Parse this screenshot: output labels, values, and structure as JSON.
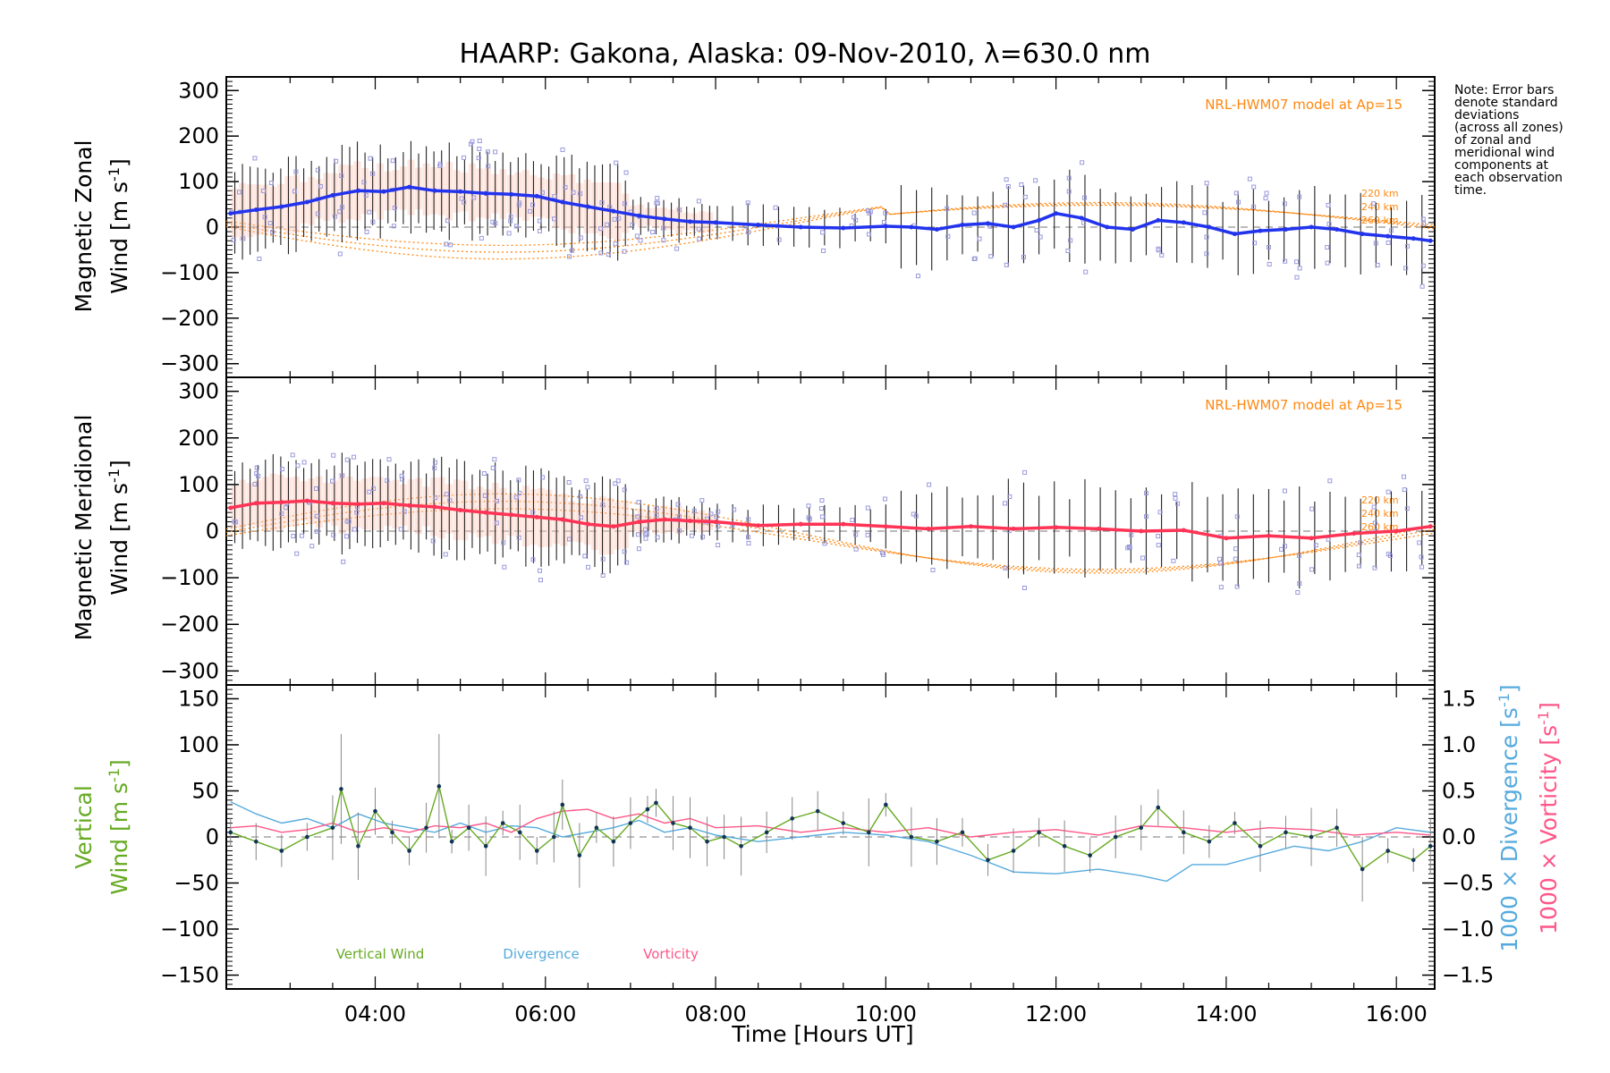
{
  "title": "HAARP: Gakona,  Alaska: 09-Nov-2010, λ=630.0 nm",
  "note": [
    "Note: Error bars",
    "denote standard",
    "deviations",
    "(across all zones)",
    "of zonal and",
    "meridional wind",
    "components at",
    "each observation",
    "time."
  ],
  "colors": {
    "zonal": "#2233ee",
    "meridional": "#ff3355",
    "vertical": "#66aa22",
    "divergence": "#55aadd",
    "vorticity": "#ff5588",
    "model": "#ff8811",
    "scatter": "#9999dd",
    "errbar": "#222222"
  },
  "chart_data": [
    {
      "type": "line",
      "panel": "zonal",
      "ylabel": [
        "Magnetic Zonal",
        "Wind [m s⁻¹]"
      ],
      "ylabel_line1": "Magnetic Zonal",
      "ylabel_line2": "Wind [m s",
      "ylabel_sup": "-1",
      "ylim": [
        -330,
        330
      ],
      "yticks": [
        "300",
        "200",
        "100",
        "0",
        "−100",
        "−200",
        "−300"
      ],
      "ytick_values": [
        300,
        200,
        100,
        0,
        -100,
        -200,
        -300
      ],
      "model_label": "NRL-HWM07 model at Ap=15",
      "model_altitudes": [
        "220 km",
        "240 km",
        "260 km"
      ],
      "series_x_hours": [
        2.3,
        2.6,
        2.9,
        3.2,
        3.5,
        3.8,
        4.1,
        4.4,
        4.7,
        5.0,
        5.3,
        5.6,
        5.9,
        6.2,
        6.5,
        6.8,
        7.1,
        7.4,
        7.7,
        8.0,
        8.5,
        9.0,
        9.5,
        10.0,
        10.3,
        10.6,
        10.9,
        11.2,
        11.5,
        11.8,
        12.0,
        12.3,
        12.6,
        12.9,
        13.2,
        13.5,
        13.8,
        14.1,
        14.4,
        14.7,
        15.0,
        15.3,
        15.6,
        15.9,
        16.2,
        16.4
      ],
      "series_values": [
        30,
        38,
        45,
        55,
        70,
        80,
        78,
        88,
        80,
        78,
        74,
        72,
        68,
        55,
        45,
        35,
        25,
        18,
        12,
        10,
        5,
        0,
        -2,
        2,
        0,
        -5,
        5,
        8,
        0,
        15,
        30,
        20,
        0,
        -5,
        15,
        10,
        0,
        -15,
        -8,
        -5,
        0,
        -5,
        -15,
        -20,
        -25,
        -30
      ]
    },
    {
      "type": "line",
      "panel": "meridional",
      "ylabel": [
        "Magnetic Meridional",
        "Wind [m s⁻¹]"
      ],
      "ylabel_line1": "Magnetic Meridional",
      "ylabel_line2": "Wind [m s",
      "ylabel_sup": "-1",
      "ylim": [
        -330,
        330
      ],
      "yticks": [
        "300",
        "200",
        "100",
        "0",
        "−100",
        "−200",
        "−300"
      ],
      "ytick_values": [
        300,
        200,
        100,
        0,
        -100,
        -200,
        -300
      ],
      "model_label": "NRL-HWM07 model at Ap=15",
      "model_altitudes": [
        "220 km",
        "240 km",
        "260 km"
      ],
      "series_x_hours": [
        2.3,
        2.6,
        2.9,
        3.2,
        3.5,
        3.8,
        4.1,
        4.4,
        4.7,
        5.0,
        5.3,
        5.6,
        5.9,
        6.2,
        6.5,
        6.8,
        7.1,
        7.4,
        7.7,
        8.0,
        8.5,
        9.0,
        9.5,
        10.0,
        10.5,
        11.0,
        11.5,
        12.0,
        12.5,
        13.0,
        13.5,
        14.0,
        14.5,
        15.0,
        15.5,
        16.0,
        16.4
      ],
      "series_values": [
        50,
        60,
        62,
        65,
        60,
        58,
        60,
        55,
        52,
        45,
        40,
        35,
        30,
        25,
        15,
        10,
        20,
        25,
        22,
        20,
        12,
        15,
        15,
        10,
        5,
        10,
        5,
        8,
        5,
        0,
        2,
        -15,
        -10,
        -15,
        -5,
        0,
        10
      ]
    },
    {
      "type": "line",
      "panel": "vertical",
      "ylabel_line1": "Vertical",
      "ylabel_line2": "Wind [m s",
      "ylabel_sup": "-1",
      "ylabel_right1_a": "1000 × Divergence [s",
      "ylabel_right2_a": "1000 × Vorticity [s",
      "ylabel_right_sup": "-1",
      "ylim": [
        -165,
        165
      ],
      "yticks": [
        "150",
        "100",
        "50",
        "0",
        "−50",
        "−100",
        "−150"
      ],
      "ytick_values": [
        150,
        100,
        50,
        0,
        -50,
        -100,
        -150
      ],
      "y2lim": [
        -1.65,
        1.65
      ],
      "y2ticks": [
        "1.5",
        "1.0",
        "0.5",
        "0.0",
        "−0.5",
        "−1.0",
        "−1.5"
      ],
      "y2tick_values": [
        1.5,
        1.0,
        0.5,
        0.0,
        -0.5,
        -1.0,
        -1.5
      ],
      "xlabel": "Time [Hours UT]",
      "xlabel_text": "Time [Hours UT]",
      "xticks": [
        "04:00",
        "06:00",
        "08:00",
        "10:00",
        "12:00",
        "14:00",
        "16:00"
      ],
      "xtick_values": [
        4,
        6,
        8,
        10,
        12,
        14,
        16
      ],
      "xlim": [
        2.25,
        16.45
      ],
      "legend": [
        "Vertical Wind",
        "Divergence",
        "Vorticity"
      ],
      "series": [
        {
          "name": "Vertical Wind",
          "x": [
            2.3,
            2.6,
            2.9,
            3.2,
            3.5,
            3.6,
            3.8,
            4.0,
            4.2,
            4.4,
            4.6,
            4.75,
            4.9,
            5.1,
            5.3,
            5.5,
            5.7,
            5.9,
            6.1,
            6.2,
            6.4,
            6.6,
            6.8,
            7.0,
            7.2,
            7.3,
            7.5,
            7.7,
            7.9,
            8.1,
            8.3,
            8.6,
            8.9,
            9.2,
            9.5,
            9.8,
            10.0,
            10.3,
            10.6,
            10.9,
            11.2,
            11.5,
            11.8,
            12.1,
            12.4,
            12.7,
            13.0,
            13.2,
            13.5,
            13.8,
            14.1,
            14.4,
            14.7,
            15.0,
            15.3,
            15.6,
            15.9,
            16.2,
            16.4
          ],
          "values": [
            5,
            -5,
            -15,
            0,
            10,
            52,
            -10,
            28,
            5,
            -15,
            10,
            55,
            -5,
            10,
            -10,
            15,
            5,
            -15,
            0,
            35,
            -20,
            10,
            -5,
            15,
            30,
            37,
            15,
            10,
            -5,
            0,
            -10,
            5,
            20,
            28,
            15,
            5,
            35,
            0,
            -5,
            5,
            -25,
            -15,
            5,
            -10,
            -20,
            0,
            10,
            32,
            5,
            -5,
            15,
            -10,
            5,
            0,
            10,
            -35,
            -15,
            -25,
            -10
          ]
        },
        {
          "name": "Divergence",
          "x": [
            2.3,
            2.6,
            2.9,
            3.2,
            3.5,
            3.8,
            4.1,
            4.4,
            4.7,
            5.0,
            5.3,
            5.6,
            5.9,
            6.2,
            6.5,
            6.8,
            7.1,
            7.4,
            7.7,
            8.0,
            8.5,
            9.0,
            9.5,
            10.0,
            10.5,
            11.0,
            11.5,
            12.0,
            12.5,
            13.0,
            13.3,
            13.6,
            14.0,
            14.4,
            14.8,
            15.2,
            15.6,
            16.0,
            16.4
          ],
          "values": [
            0.38,
            0.25,
            0.15,
            0.2,
            0.1,
            0.25,
            0.15,
            0.1,
            0.05,
            0.15,
            0.05,
            0.12,
            0.1,
            0.0,
            0.05,
            0.1,
            0.18,
            0.05,
            0.1,
            0.02,
            -0.05,
            0.0,
            0.05,
            0.02,
            -0.05,
            -0.2,
            -0.38,
            -0.4,
            -0.35,
            -0.42,
            -0.48,
            -0.3,
            -0.3,
            -0.2,
            -0.1,
            -0.15,
            -0.05,
            0.1,
            0.05
          ]
        },
        {
          "name": "Vorticity",
          "x": [
            2.3,
            2.6,
            2.9,
            3.2,
            3.5,
            3.8,
            4.1,
            4.4,
            4.7,
            5.0,
            5.3,
            5.6,
            5.9,
            6.2,
            6.5,
            6.8,
            7.1,
            7.4,
            7.7,
            8.0,
            8.5,
            9.0,
            9.5,
            10.0,
            10.5,
            11.0,
            11.5,
            12.0,
            12.5,
            13.0,
            13.5,
            14.0,
            14.5,
            15.0,
            15.5,
            16.0,
            16.4
          ],
          "values": [
            0.1,
            0.12,
            0.05,
            0.08,
            0.15,
            0.05,
            0.1,
            0.05,
            0.12,
            0.1,
            0.15,
            0.05,
            0.2,
            0.28,
            0.3,
            0.2,
            0.25,
            0.15,
            0.2,
            0.1,
            0.12,
            0.05,
            0.1,
            0.05,
            0.1,
            0.0,
            0.05,
            0.08,
            0.02,
            0.12,
            0.1,
            0.05,
            0.1,
            0.08,
            0.02,
            0.05,
            0.02
          ]
        }
      ]
    }
  ]
}
